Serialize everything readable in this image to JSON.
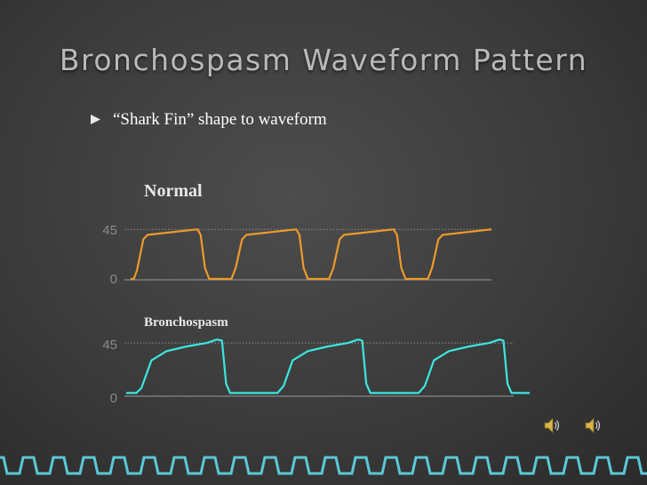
{
  "slide": {
    "title": "Bronchospasm Waveform Pattern",
    "bullet": "“Shark Fin” shape to waveform"
  },
  "colors": {
    "normal_wave": "#ee9a2a",
    "bronch_wave": "#3de6e0",
    "footer": "#5bc8d6"
  },
  "icons": [
    "speaker-icon",
    "speaker-icon",
    "bullet-square-icon"
  ],
  "chart_data": [
    {
      "type": "line",
      "title": "Normal",
      "yticks": [
        "45",
        "0"
      ],
      "ylim": [
        0,
        50
      ],
      "reference_line": 45,
      "series": [
        {
          "values": [
            [
              0,
              0
            ],
            [
              0.3,
              0
            ],
            [
              0.6,
              8
            ],
            [
              1.2,
              36
            ],
            [
              1.6,
              40
            ],
            [
              6.3,
              45
            ],
            [
              6.6,
              40
            ],
            [
              7,
              10
            ],
            [
              7.4,
              0
            ],
            [
              9.5,
              0
            ],
            [
              9.9,
              10
            ],
            [
              10.5,
              36
            ],
            [
              10.9,
              40
            ],
            [
              15.6,
              45
            ],
            [
              15.9,
              40
            ],
            [
              16.3,
              10
            ],
            [
              16.7,
              0
            ],
            [
              18.7,
              0
            ],
            [
              19.1,
              10
            ],
            [
              19.7,
              36
            ],
            [
              20.1,
              40
            ],
            [
              24.8,
              45
            ],
            [
              25.1,
              40
            ],
            [
              25.5,
              10
            ],
            [
              25.9,
              0
            ],
            [
              28,
              0
            ],
            [
              28.4,
              10
            ],
            [
              29,
              36
            ],
            [
              29.4,
              40
            ],
            [
              34,
              45
            ]
          ]
        }
      ]
    },
    {
      "type": "line",
      "title": "Bronchospasm",
      "yticks": [
        "45",
        "0"
      ],
      "ylim": [
        0,
        55
      ],
      "reference_line": 45,
      "series": [
        {
          "values": [
            [
              0,
              2
            ],
            [
              1,
              2
            ],
            [
              1.5,
              6
            ],
            [
              2.5,
              30
            ],
            [
              4,
              38
            ],
            [
              6,
              42
            ],
            [
              8,
              45
            ],
            [
              9,
              48
            ],
            [
              9.5,
              47
            ],
            [
              9.9,
              10
            ],
            [
              10.3,
              2
            ],
            [
              15,
              2
            ],
            [
              15.6,
              8
            ],
            [
              16.5,
              30
            ],
            [
              18,
              38
            ],
            [
              20,
              42
            ],
            [
              22,
              45
            ],
            [
              23,
              48
            ],
            [
              23.4,
              47
            ],
            [
              23.8,
              10
            ],
            [
              24.2,
              2
            ],
            [
              29,
              2
            ],
            [
              29.6,
              8
            ],
            [
              30.5,
              30
            ],
            [
              32,
              38
            ],
            [
              34,
              42
            ],
            [
              36,
              45
            ],
            [
              37,
              48
            ],
            [
              37.4,
              47
            ],
            [
              37.8,
              10
            ],
            [
              38.2,
              2
            ],
            [
              40,
              2
            ]
          ]
        }
      ]
    }
  ]
}
